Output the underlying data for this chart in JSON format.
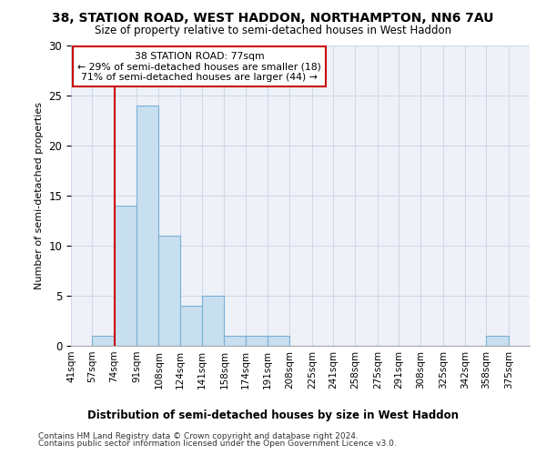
{
  "title": "38, STATION ROAD, WEST HADDON, NORTHAMPTON, NN6 7AU",
  "subtitle": "Size of property relative to semi-detached houses in West Haddon",
  "xlabel": "Distribution of semi-detached houses by size in West Haddon",
  "ylabel": "Number of semi-detached properties",
  "footer_line1": "Contains HM Land Registry data © Crown copyright and database right 2024.",
  "footer_line2": "Contains public sector information licensed under the Open Government Licence v3.0.",
  "bin_edges": [
    41,
    57,
    74,
    91,
    108,
    124,
    141,
    158,
    174,
    191,
    208,
    225,
    241,
    258,
    275,
    291,
    308,
    325,
    342,
    358,
    375,
    391
  ],
  "bin_labels": [
    "41sqm",
    "57sqm",
    "74sqm",
    "91sqm",
    "108sqm",
    "124sqm",
    "141sqm",
    "158sqm",
    "174sqm",
    "191sqm",
    "208sqm",
    "225sqm",
    "241sqm",
    "258sqm",
    "275sqm",
    "291sqm",
    "308sqm",
    "325sqm",
    "342sqm",
    "358sqm",
    "375sqm"
  ],
  "values": [
    0,
    1,
    14,
    24,
    11,
    4,
    5,
    1,
    1,
    1,
    0,
    0,
    0,
    0,
    0,
    0,
    0,
    0,
    0,
    1,
    0
  ],
  "bar_color": "#c8dff0",
  "bar_edge_color": "#7ab0d4",
  "property_line_x": 74,
  "property_line_color": "#cc0000",
  "ylim": [
    0,
    30
  ],
  "yticks": [
    0,
    5,
    10,
    15,
    20,
    25,
    30
  ],
  "annotation_text_line1": "38 STATION ROAD: 77sqm",
  "annotation_text_line2": "← 29% of semi-detached houses are smaller (18)",
  "annotation_text_line3": "71% of semi-detached houses are larger (44) →",
  "annotation_box_facecolor": "#ffffff",
  "annotation_box_edgecolor": "#cc0000",
  "grid_color": "#d0d8e8",
  "background_color": "#ffffff",
  "axes_background_color": "#eef2f8"
}
